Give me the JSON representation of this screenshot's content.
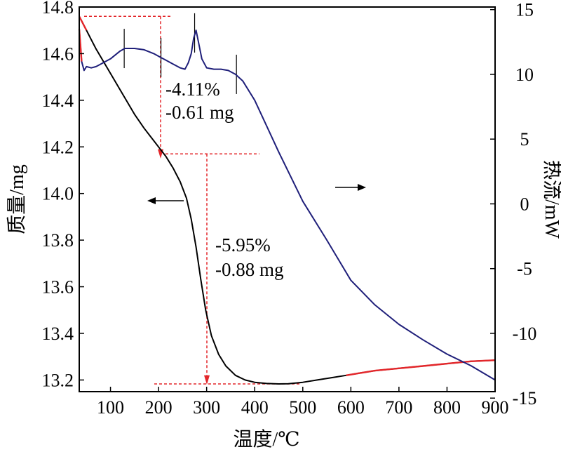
{
  "chart_data": {
    "type": "line",
    "x_axis": {
      "label": "温度/℃",
      "range": [
        35,
        900
      ],
      "ticks": [
        100,
        200,
        300,
        400,
        500,
        600,
        700,
        800,
        900
      ]
    },
    "y_left": {
      "label": "质量/mg",
      "range": [
        13.15,
        14.8
      ],
      "ticks": [
        13.2,
        13.4,
        13.6,
        13.8,
        14.0,
        14.2,
        14.4,
        14.6,
        14.8
      ],
      "tick_labels": [
        "13.2",
        "13.4",
        "13.6",
        "13.8",
        "14.0",
        "14.2",
        "14.4",
        "14.6",
        "14.8"
      ]
    },
    "y_right": {
      "label": "热流/mW",
      "range": [
        -14.5,
        15.2
      ],
      "ticks": [
        -15,
        -10,
        -5,
        0,
        5,
        10,
        15
      ],
      "tick_labels": [
        "-15",
        "-10",
        "-5",
        "0",
        "5",
        "10",
        "15"
      ]
    },
    "series": [
      {
        "axis": "left",
        "color": "#000000",
        "highlight_color": "#e3262a",
        "x": [
          35,
          50,
          70,
          90,
          110,
          130,
          150,
          170,
          185,
          200,
          215,
          230,
          245,
          258,
          268,
          278,
          288,
          298,
          310,
          325,
          340,
          360,
          380,
          400,
          425,
          450,
          470,
          500,
          530,
          560,
          590,
          620,
          650,
          700,
          750,
          800,
          850,
          900
        ],
        "y": [
          14.76,
          14.7,
          14.62,
          14.55,
          14.48,
          14.41,
          14.34,
          14.28,
          14.24,
          14.2,
          14.16,
          14.11,
          14.05,
          13.98,
          13.89,
          13.77,
          13.63,
          13.5,
          13.39,
          13.31,
          13.26,
          13.22,
          13.2,
          13.19,
          13.185,
          13.183,
          13.184,
          13.19,
          13.2,
          13.21,
          13.22,
          13.23,
          13.24,
          13.25,
          13.26,
          13.27,
          13.28,
          13.285
        ],
        "highlight_ranges": [
          [
            35,
            40
          ],
          [
            620,
            860
          ]
        ]
      },
      {
        "axis": "right",
        "color": "#1f1f7a",
        "highlight_color": "#e3262a",
        "x": [
          35,
          40,
          45,
          50,
          60,
          70,
          80,
          100,
          120,
          130,
          150,
          170,
          190,
          205,
          215,
          230,
          245,
          255,
          262,
          268,
          273,
          278,
          283,
          290,
          300,
          315,
          330,
          345,
          360,
          375,
          400,
          450,
          500,
          550,
          600,
          650,
          700,
          750,
          800,
          850,
          900
        ],
        "y": [
          13.5,
          11.0,
          10.3,
          10.6,
          10.5,
          10.6,
          10.8,
          11.2,
          11.8,
          12.0,
          12.0,
          11.9,
          11.6,
          11.3,
          11.1,
          10.8,
          10.5,
          10.4,
          10.9,
          11.6,
          12.8,
          13.4,
          12.5,
          11.2,
          10.5,
          10.4,
          10.4,
          10.3,
          10.0,
          9.5,
          8.0,
          4.0,
          0.2,
          -2.8,
          -5.9,
          -7.8,
          -9.3,
          -10.5,
          -11.6,
          -12.5,
          -13.6
        ],
        "highlight_ranges": [
          [
            35,
            38
          ]
        ]
      }
    ],
    "annotations": [
      {
        "lines": [
          "-4.11%",
          "-0.61 mg"
        ]
      },
      {
        "lines": [
          "-5.95%",
          "-0.88 mg"
        ]
      }
    ]
  }
}
